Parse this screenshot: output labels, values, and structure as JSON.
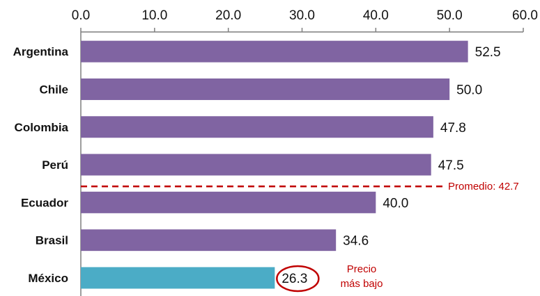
{
  "chart_data": {
    "type": "bar",
    "orientation": "horizontal",
    "categories": [
      "Argentina",
      "Chile",
      "Colombia",
      "Perú",
      "Ecuador",
      "Brasil",
      "México"
    ],
    "values": [
      52.5,
      50.0,
      47.8,
      47.5,
      40.0,
      34.6,
      26.3
    ],
    "value_labels": [
      "52.5",
      "50.0",
      "47.8",
      "47.5",
      "40.0",
      "34.6",
      "26.3"
    ],
    "xlim": [
      0,
      60
    ],
    "ticks": [
      0,
      10,
      20,
      30,
      40,
      50,
      60
    ],
    "tick_labels": [
      "0.0",
      "10.0",
      "20.0",
      "30.0",
      "40.0",
      "50.0",
      "60.0"
    ],
    "axis_position": "top",
    "grid": false,
    "colors": {
      "default": "#8064a2",
      "highlight": "#4bacc6",
      "average_line": "#c00000",
      "note": "#c00000"
    },
    "highlight_category": "México",
    "average": {
      "value": 42.7,
      "label": "Promedio: 42.7",
      "between": [
        "Perú",
        "Ecuador"
      ]
    },
    "annotation": {
      "category": "México",
      "lines": [
        "Precio",
        "más bajo"
      ]
    }
  }
}
